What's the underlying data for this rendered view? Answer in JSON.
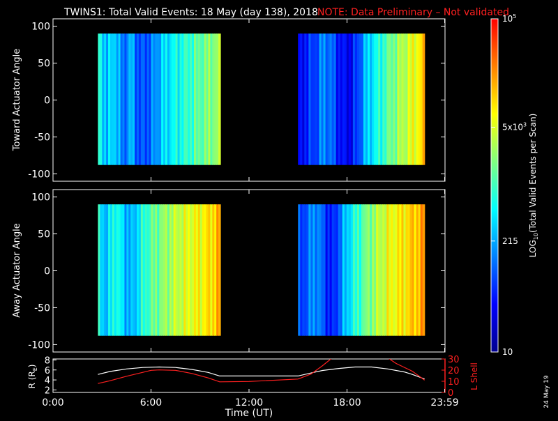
{
  "title": {
    "main": "TWINS1: Total Valid Events: 18 May (day 138), 2018",
    "note": "NOTE: Data Preliminary – Not validated",
    "note_color": "#ff2020"
  },
  "stamp": "24 May 19",
  "colorbar": {
    "label": "LOG",
    "label_sub": "10",
    "label_rest": "(Total Valid Events per Scan)",
    "ticks": [
      {
        "value": 10,
        "text": "10"
      },
      {
        "value": 215,
        "text": "215"
      },
      {
        "value": 5000,
        "text_main": "5x10",
        "text_sup": "3"
      },
      {
        "value": 100000,
        "text_main": "10",
        "text_sup": "5"
      }
    ],
    "range": [
      10,
      100000
    ],
    "scale": "log",
    "colors": [
      "#00008f",
      "#0000ff",
      "#0080ff",
      "#00ffff",
      "#80ff80",
      "#ffff00",
      "#ff8000",
      "#ff0000"
    ]
  },
  "chart_data": [
    {
      "type": "heatmap",
      "ylabel": "Toward Actuator Angle",
      "xlim": [
        0,
        24
      ],
      "ylim": [
        -110,
        110
      ],
      "yticks": [
        100,
        50,
        0,
        -50,
        -100
      ],
      "segments": [
        {
          "x_start": 2.75,
          "x_end": 10.25,
          "y_range": [
            -88,
            90
          ],
          "profile": [
            0.45,
            0.35,
            0.4,
            0.25,
            0.35,
            0.22,
            0.24,
            0.3,
            0.38,
            0.42,
            0.45,
            0.48,
            0.52,
            0.55,
            0.58,
            0.6
          ]
        },
        {
          "x_start": 15.0,
          "x_end": 22.75,
          "y_range": [
            -88,
            90
          ],
          "profile": [
            0.12,
            0.18,
            0.22,
            0.3,
            0.25,
            0.15,
            0.12,
            0.2,
            0.35,
            0.42,
            0.48,
            0.55,
            0.6,
            0.65,
            0.7,
            0.76
          ]
        }
      ]
    },
    {
      "type": "heatmap",
      "ylabel": "Away Actuator Angle",
      "xlim": [
        0,
        24
      ],
      "ylim": [
        -110,
        110
      ],
      "yticks": [
        100,
        50,
        0,
        -50,
        -100
      ],
      "segments": [
        {
          "x_start": 2.75,
          "x_end": 10.25,
          "y_range": [
            -88,
            90
          ],
          "profile": [
            0.42,
            0.35,
            0.48,
            0.38,
            0.32,
            0.42,
            0.5,
            0.55,
            0.58,
            0.62,
            0.65,
            0.68,
            0.7,
            0.72,
            0.75,
            0.8
          ]
        },
        {
          "x_start": 15.0,
          "x_end": 22.75,
          "y_range": [
            -88,
            90
          ],
          "profile": [
            0.2,
            0.25,
            0.32,
            0.22,
            0.15,
            0.28,
            0.4,
            0.48,
            0.55,
            0.6,
            0.65,
            0.7,
            0.72,
            0.75,
            0.78,
            0.82
          ]
        }
      ]
    },
    {
      "type": "line",
      "xlabel": "Time (UT)",
      "xlim": [
        0,
        24
      ],
      "x_ticks": [
        {
          "value": 0,
          "label": "0:00"
        },
        {
          "value": 6,
          "label": "6:00"
        },
        {
          "value": 12,
          "label": "12:00"
        },
        {
          "value": 18,
          "label": "18:00"
        },
        {
          "value": 23.98,
          "label": "23:59"
        }
      ],
      "left_axis": {
        "label_main": "R (R",
        "label_sub": "E",
        "label_end": ")",
        "range": [
          1.5,
          8.2
        ],
        "ticks": [
          2,
          4,
          6,
          8
        ]
      },
      "right_axis": {
        "label": "L Shell",
        "range": [
          0,
          30
        ],
        "ticks": [
          0,
          10,
          20,
          30
        ],
        "color": "#ff2020"
      },
      "series": [
        {
          "axis": "left",
          "color": "#ffffff",
          "x": [
            2.75,
            3.5,
            4.5,
            5.5,
            6.5,
            7.5,
            8.5,
            9.5,
            10.2,
            15.0,
            15.8,
            16.5,
            17.5,
            18.5,
            19.5,
            20.5,
            21.5,
            22.0,
            22.75
          ],
          "y": [
            5.1,
            5.7,
            6.2,
            6.5,
            6.6,
            6.5,
            6.1,
            5.5,
            4.8,
            4.8,
            5.4,
            5.9,
            6.3,
            6.6,
            6.6,
            6.2,
            5.6,
            5.1,
            4.2
          ]
        },
        {
          "axis": "right",
          "color": "#ff2020",
          "x": [
            2.75,
            3.5,
            4.5,
            5.5,
            6.0,
            6.5,
            7.5,
            8.5,
            9.5,
            10.2,
            12.0,
            15.0,
            15.8,
            16.5,
            17.1,
            20.5,
            21.0,
            22.0,
            22.75
          ],
          "y": [
            8,
            10.5,
            14.5,
            18,
            19.8,
            20.2,
            19.8,
            17,
            13,
            9.5,
            9.8,
            12,
            16.5,
            24,
            31,
            31,
            26,
            19,
            11
          ]
        }
      ]
    }
  ]
}
